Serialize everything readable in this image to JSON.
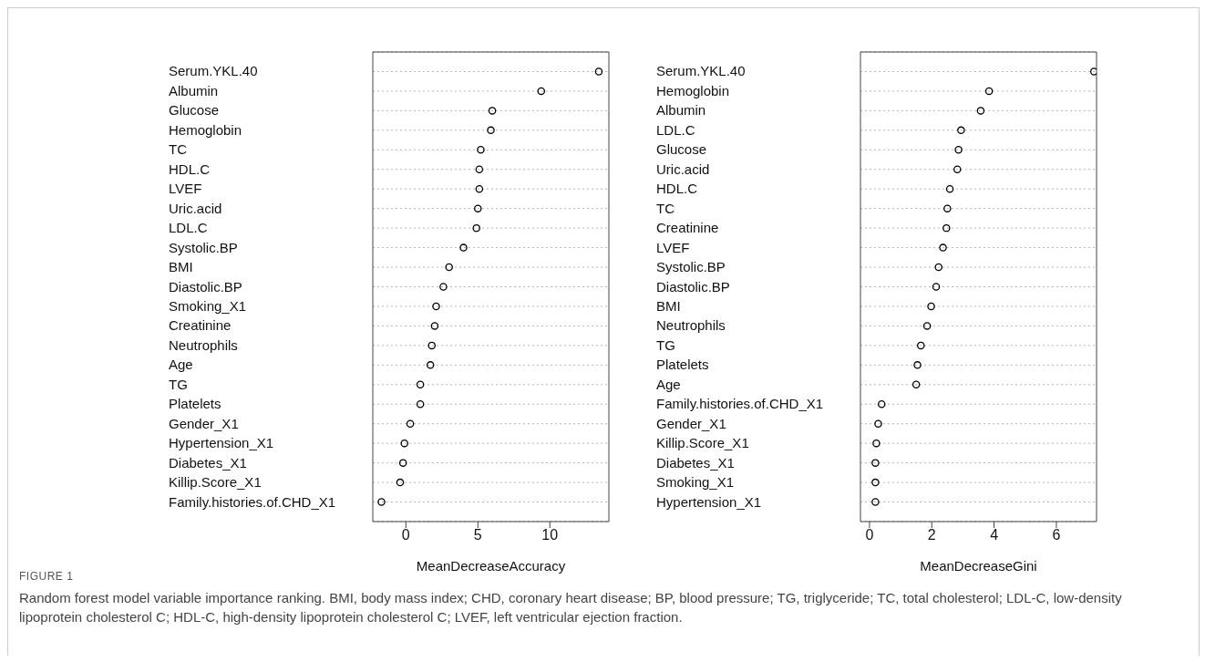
{
  "chart_data": [
    {
      "type": "scatter",
      "orientation": "horizontal",
      "xlabel": "MeanDecreaseAccuracy",
      "categories": [
        "Serum.YKL.40",
        "Albumin",
        "Glucose",
        "Hemoglobin",
        "TC",
        "HDL.C",
        "LVEF",
        "Uric.acid",
        "LDL.C",
        "Systolic.BP",
        "BMI",
        "Diastolic.BP",
        "Smoking_X1",
        "Creatinine",
        "Neutrophils",
        "Age",
        "TG",
        "Platelets",
        "Gender_X1",
        "Hypertension_X1",
        "Diabetes_X1",
        "Killip.Score_X1",
        "Family.histories.of.CHD_X1"
      ],
      "values": [
        13.4,
        9.4,
        6.0,
        5.9,
        5.2,
        5.1,
        5.1,
        5.0,
        4.9,
        4.0,
        3.0,
        2.6,
        2.1,
        2.0,
        1.8,
        1.7,
        1.0,
        1.0,
        0.3,
        -0.1,
        -0.2,
        -0.4,
        -1.7
      ],
      "color": "#000000",
      "marker": "circle",
      "grid": "y",
      "xlim": [
        -2.3,
        14.1
      ],
      "xticks": [
        0,
        5,
        10
      ],
      "annotations": [
        "FIGURE 1",
        "Random forest model variable importance ranking. BMI, body mass index; CHD, coronary heart disease; BP, blood pressure; TG, triglyceride; TC, total cholesterol; LDL-C, low-density lipoprotein cholesterol C; HDL-C, high-density lipoprotein cholesterol C; LVEF, left ventricular ejection fraction."
      ]
    },
    {
      "type": "scatter",
      "orientation": "horizontal",
      "xlabel": "MeanDecreaseGini",
      "categories": [
        "Serum.YKL.40",
        "Hemoglobin",
        "Albumin",
        "LDL.C",
        "Glucose",
        "Uric.acid",
        "HDL.C",
        "TC",
        "Creatinine",
        "LVEF",
        "Systolic.BP",
        "Diastolic.BP",
        "BMI",
        "Neutrophils",
        "TG",
        "Platelets",
        "Age",
        "Family.histories.of.CHD_X1",
        "Gender_X1",
        "Killip.Score_X1",
        "Diabetes_X1",
        "Smoking_X1",
        "Hypertension_X1"
      ],
      "values": [
        7.21,
        3.84,
        3.57,
        2.94,
        2.86,
        2.82,
        2.58,
        2.5,
        2.47,
        2.36,
        2.22,
        2.14,
        1.98,
        1.85,
        1.65,
        1.54,
        1.5,
        0.39,
        0.28,
        0.22,
        0.19,
        0.19,
        0.19
      ],
      "color": "#000000",
      "marker": "circle",
      "grid": "y",
      "xlim": [
        -0.29,
        7.29
      ],
      "xticks": [
        0,
        2,
        4,
        6
      ]
    }
  ]
}
